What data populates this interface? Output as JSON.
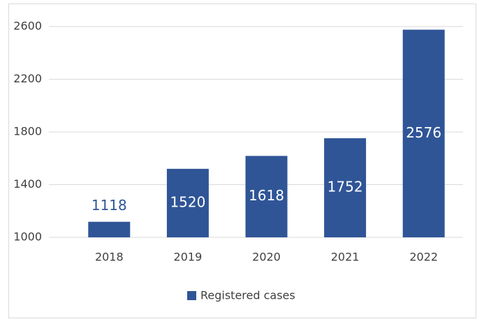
{
  "chart_data": {
    "type": "bar",
    "categories": [
      "2018",
      "2019",
      "2020",
      "2021",
      "2022"
    ],
    "series": [
      {
        "name": "Registered cases",
        "color": "#2f5597",
        "values": [
          1118,
          1520,
          1618,
          1752,
          2576
        ]
      }
    ],
    "ylim": [
      1000,
      2600
    ],
    "yticks": [
      1000,
      1400,
      1800,
      2200,
      2600
    ],
    "grid": true,
    "legend": "bottom"
  }
}
